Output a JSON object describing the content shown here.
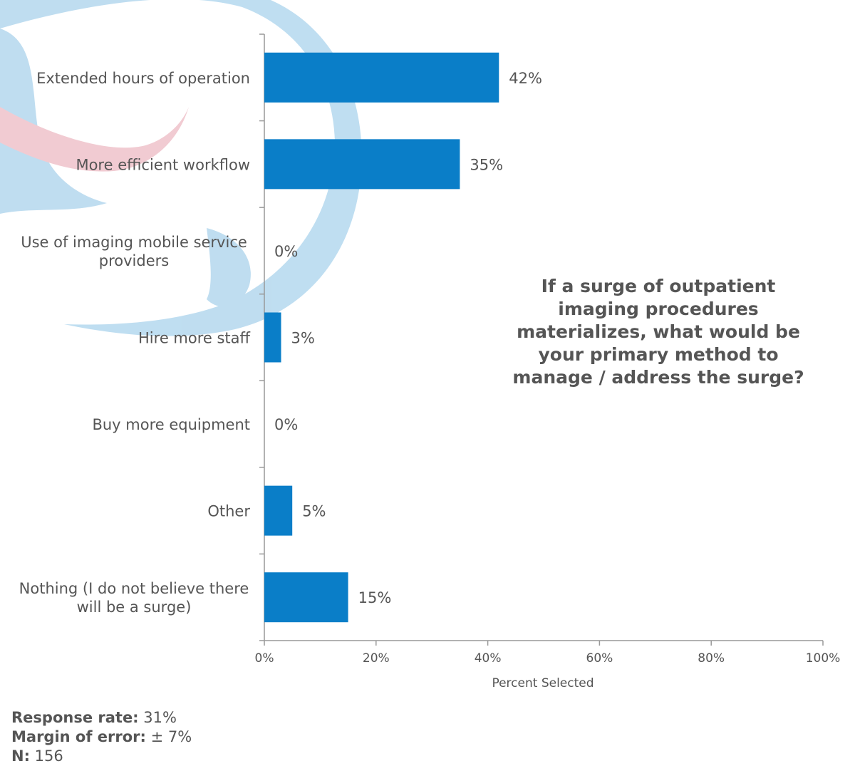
{
  "chart_data": {
    "type": "bar",
    "orientation": "horizontal",
    "categories": [
      [
        "Extended hours of operation"
      ],
      [
        "More efficient workflow"
      ],
      [
        "Use of imaging mobile service",
        "providers"
      ],
      [
        "Hire more staff"
      ],
      [
        "Buy more equipment"
      ],
      [
        "Other"
      ],
      [
        "Nothing (I do not believe there",
        "will be a surge)"
      ]
    ],
    "values": [
      42,
      35,
      0,
      3,
      0,
      5,
      15
    ],
    "value_labels": [
      "42%",
      "35%",
      "0%",
      "3%",
      "0%",
      "5%",
      "15%"
    ],
    "xlim": [
      0,
      100
    ],
    "xticks": [
      "0%",
      "20%",
      "40%",
      "60%",
      "80%",
      "100%"
    ],
    "xlabel": "Percent Selected",
    "bar_color": "#0a7ec8",
    "grid": false
  },
  "question": "If a surge of outpatient imaging procedures materializes, what would be your primary method to manage / address the surge?",
  "footer": {
    "response_rate_label": "Response rate:",
    "response_rate_value": " 31%",
    "margin_label": "Margin of error:",
    "margin_value": " ± 7%",
    "n_label": "N:",
    "n_value": " 156"
  },
  "colors": {
    "text": "#555555",
    "watermark_blue": "#bcdcf0",
    "watermark_pink": "#f1c9d0",
    "axis": "#999999"
  }
}
